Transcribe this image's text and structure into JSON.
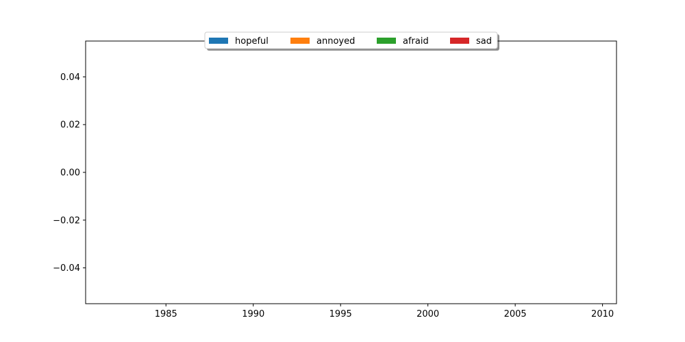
{
  "chart_data": {
    "type": "bar",
    "title": "",
    "xlabel": "",
    "ylabel": "",
    "xlim": [
      1980.4,
      2010.8
    ],
    "ylim": [
      -0.055,
      0.055
    ],
    "x_ticks": [
      1985,
      1990,
      1995,
      2000,
      2005,
      2010
    ],
    "x_tick_labels": [
      "1985",
      "1990",
      "1995",
      "2000",
      "2005",
      "2010"
    ],
    "y_ticks": [
      0.04,
      0.02,
      0.0,
      -0.02,
      -0.04
    ],
    "y_tick_labels": [
      "0.04",
      "0.02",
      "0.00",
      "−0.02",
      "−0.04"
    ],
    "grid": false,
    "legend_position": "top-center",
    "legend_columns": 4,
    "series": [
      {
        "name": "hopeful",
        "color": "#1f77b4",
        "values": []
      },
      {
        "name": "annoyed",
        "color": "#ff7f0e",
        "values": []
      },
      {
        "name": "afraid",
        "color": "#2ca02c",
        "values": []
      },
      {
        "name": "sad",
        "color": "#d62728",
        "values": []
      }
    ]
  }
}
